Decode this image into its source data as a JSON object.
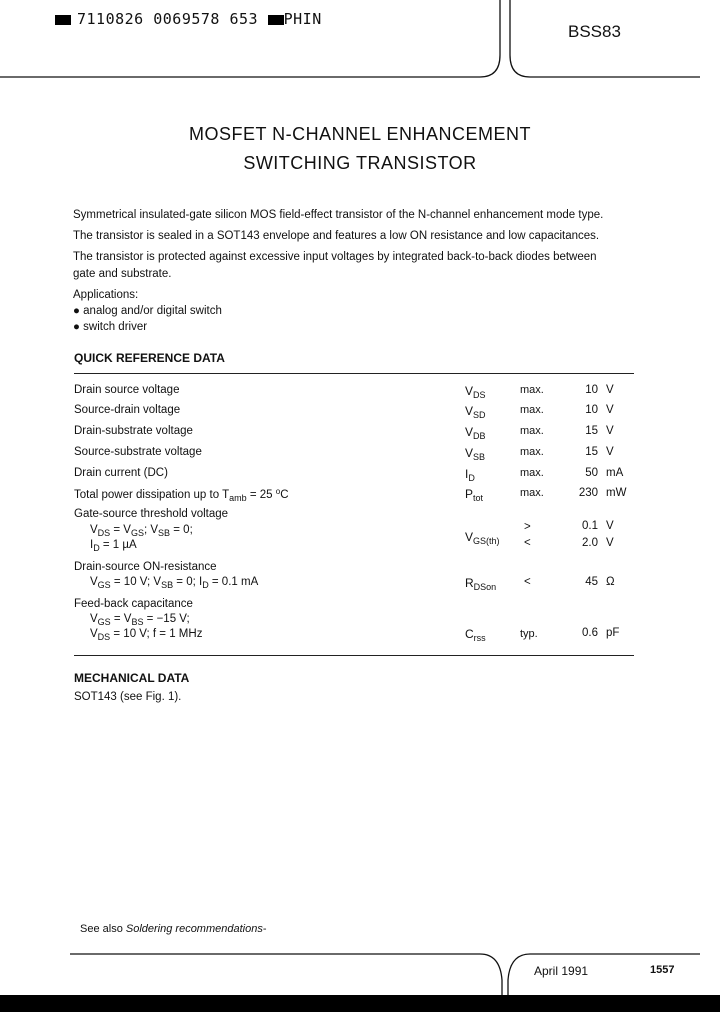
{
  "header": {
    "code": "7110826 0069578 653",
    "mark": "PHIN",
    "part_number": "BSS83"
  },
  "title": {
    "line1": "MOSFET N-CHANNEL ENHANCEMENT",
    "line2": "SWITCHING TRANSISTOR"
  },
  "intro": [
    "Symmetrical insulated-gate silicon MOS field-effect transistor of the N-channel enhancement mode type.",
    "The transistor is sealed in a SOT143 envelope and features a low ON resistance and low capacitances.",
    "The transistor is protected against excessive input voltages by integrated back-to-back diodes between",
    "gate and substrate."
  ],
  "applications": {
    "heading": "Applications:",
    "items": [
      "analog and/or digital switch",
      "switch driver"
    ]
  },
  "quick_reference": {
    "heading": "QUICK REFERENCE DATA",
    "rows": [
      {
        "label": "Drain source voltage",
        "sym": "V",
        "sub": "DS",
        "qual": "max.",
        "value": "10",
        "unit": "V"
      },
      {
        "label": "Source-drain voltage",
        "sym": "V",
        "sub": "SD",
        "qual": "max.",
        "value": "10",
        "unit": "V"
      },
      {
        "label": "Drain-substrate voltage",
        "sym": "V",
        "sub": "DB",
        "qual": "max.",
        "value": "15",
        "unit": "V"
      },
      {
        "label": "Source-substrate voltage",
        "sym": "V",
        "sub": "SB",
        "qual": "max.",
        "value": "15",
        "unit": "V"
      },
      {
        "label": "Drain current (DC)",
        "sym": "I",
        "sub": "D",
        "qual": "max.",
        "value": "50",
        "unit": "mA"
      },
      {
        "label": "Total power dissipation up to T",
        "label_sub": "amb",
        "label_tail": " = 25 ",
        "label_sup": "o",
        "label_end": "C",
        "sym": "P",
        "sub": "tot",
        "qual": "max.",
        "value": "230",
        "unit": "mW"
      }
    ],
    "threshold": {
      "label": "Gate-source threshold voltage",
      "cond1": [
        "V",
        "DS",
        " = V",
        "GS",
        "; V",
        "SB",
        " = 0;"
      ],
      "cond2": [
        "I",
        "D",
        " = 1 µA"
      ],
      "sym": "V",
      "sub": "GS(th)",
      "qual1": ">",
      "qual2": "<",
      "value1": "0.1",
      "value2": "2.0",
      "unit": "V"
    },
    "on_resistance": {
      "label": "Drain-source ON-resistance",
      "cond": [
        "V",
        "GS",
        " = 10 V; V",
        "SB",
        " = 0; I",
        "D",
        " = 0.1 mA"
      ],
      "sym": "R",
      "sub": "DSon",
      "qual": "<",
      "value": "45",
      "unit": "Ω"
    },
    "capacitance": {
      "label": "Feed-back capacitance",
      "cond1": [
        "V",
        "GS",
        " = V",
        "BS",
        " = −15 V;"
      ],
      "cond2": [
        "V",
        "DS",
        " = 10 V; f = 1 MHz"
      ],
      "sym": "C",
      "sub": "rss",
      "qual": "typ.",
      "value": "0.6",
      "unit": "pF"
    }
  },
  "mechanical": {
    "heading": "MECHANICAL DATA",
    "text": "SOT143 (see Fig. 1)."
  },
  "footer": {
    "see_also": "See also ",
    "see_also_italic": "Soldering recommendations",
    "see_also_end": "-",
    "date": "April 1991",
    "page": "1557"
  }
}
